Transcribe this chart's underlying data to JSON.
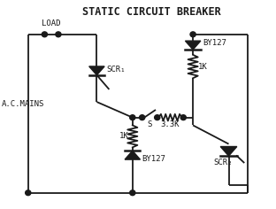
{
  "title": "STATIC CIRCUIT BREAKER",
  "line_color": "#1a1a1a",
  "title_fontsize": 8.5,
  "label_fontsize": 6.5,
  "fig_width": 3.12,
  "fig_height": 2.36,
  "dpi": 100,
  "xlim": [
    0,
    10
  ],
  "ylim": [
    0,
    8
  ],
  "lw": 1.3,
  "dot_r": 0.1
}
